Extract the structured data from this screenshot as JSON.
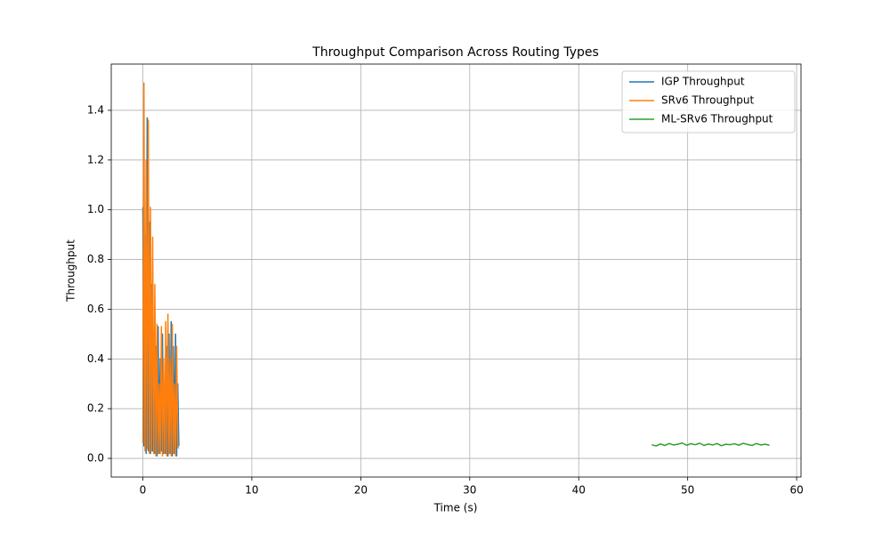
{
  "chart_data": {
    "type": "line",
    "title": "Throughput Comparison Across Routing Types",
    "x_label": "Time (s)",
    "y_label": "Throughput",
    "xlim": [
      -2.9,
      60.4
    ],
    "ylim": [
      -0.075,
      1.586
    ],
    "xticks": [
      0,
      10,
      20,
      30,
      40,
      50,
      60
    ],
    "yticks": [
      {
        "value": 0,
        "label": "0.0"
      },
      0.2,
      0.4,
      0.6,
      0.8,
      {
        "value": 1,
        "label": "1.0"
      },
      1.2,
      1.4
    ],
    "grid": true,
    "legend": "upper right",
    "series": [
      {
        "name": "IGP Throughput",
        "color": "#1f77b4",
        "x": [
          0,
          0.1,
          0.2,
          0.3,
          0.4,
          0.5,
          0.6,
          0.7,
          0.8,
          0.9,
          1,
          1.1,
          1.2,
          1.3,
          1.4,
          1.5,
          1.6,
          1.7,
          1.8,
          1.9,
          2,
          2.1,
          2.2,
          2.3,
          2.4,
          2.5,
          2.6,
          2.7,
          2.8,
          2.9,
          3,
          3.1,
          3.2,
          3.3
        ],
        "values": [
          1.01,
          0.05,
          0.9,
          0.02,
          1.37,
          0.03,
          0.95,
          0.02,
          0.7,
          0.03,
          0.5,
          0.02,
          0.45,
          0.01,
          0.53,
          0.02,
          0.4,
          0.03,
          0.5,
          0.02,
          0.3,
          0.02,
          0.45,
          0.01,
          0.5,
          0.02,
          0.55,
          0.01,
          0.45,
          0.02,
          0.5,
          0.01,
          0.3,
          0.05
        ]
      },
      {
        "name": "SRv6 Throughput",
        "color": "#ff7f0e",
        "x": [
          0,
          0.1,
          0.2,
          0.3,
          0.4,
          0.5,
          0.6,
          0.7,
          0.8,
          0.9,
          1,
          1.1,
          1.2,
          1.3,
          1.4,
          1.5,
          1.6,
          1.7,
          1.8,
          1.9,
          2,
          2.1,
          2.2,
          2.3,
          2.4,
          2.5,
          2.6,
          2.7,
          2.8,
          2.9,
          3,
          3.1,
          3.2,
          3.3
        ],
        "values": [
          0.06,
          1.51,
          0.03,
          1.2,
          0.04,
          1.36,
          0.02,
          1.01,
          0.03,
          0.89,
          0.02,
          0.7,
          0.01,
          0.54,
          0.02,
          0.3,
          0.02,
          0.53,
          0.01,
          0.4,
          0.02,
          0.55,
          0.01,
          0.58,
          0.02,
          0.4,
          0.01,
          0.54,
          0.02,
          0.3,
          0.01,
          0.45,
          0.05,
          0.04
        ]
      },
      {
        "name": "ML-SRv6 Throughput",
        "color": "#2ca02c",
        "x": [
          46.7,
          47.1,
          47.5,
          47.9,
          48.3,
          48.7,
          49.1,
          49.5,
          49.9,
          50.3,
          50.7,
          51.1,
          51.5,
          51.9,
          52.3,
          52.7,
          53.1,
          53.5,
          53.9,
          54.3,
          54.7,
          55.1,
          55.5,
          55.9,
          56.3,
          56.7,
          57.1,
          57.5
        ],
        "values": [
          0.055,
          0.05,
          0.058,
          0.052,
          0.06,
          0.054,
          0.057,
          0.062,
          0.053,
          0.059,
          0.055,
          0.061,
          0.052,
          0.058,
          0.054,
          0.06,
          0.051,
          0.057,
          0.055,
          0.059,
          0.053,
          0.061,
          0.056,
          0.052,
          0.06,
          0.054,
          0.057,
          0.053
        ]
      }
    ]
  }
}
